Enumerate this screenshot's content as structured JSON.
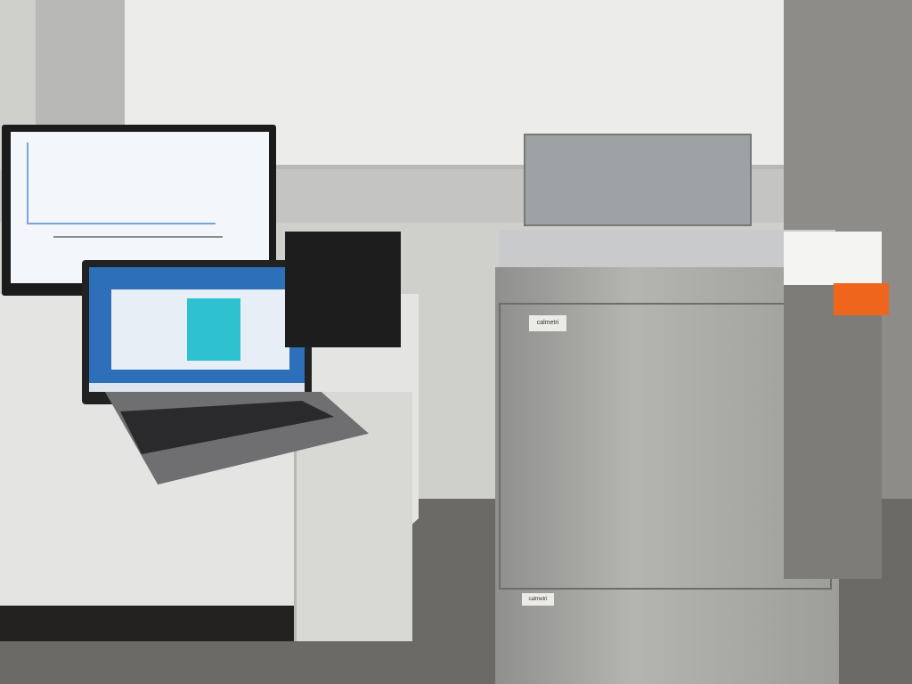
{
  "scene": {
    "description_label": "",
    "cabinet_label": "calmetri",
    "cabinet_label_lower": "calmetri",
    "colors": {
      "accent_orange": "#f0651c",
      "laptop_screen": "#2d6fb8",
      "cabinet": "#a5a5a2"
    }
  }
}
